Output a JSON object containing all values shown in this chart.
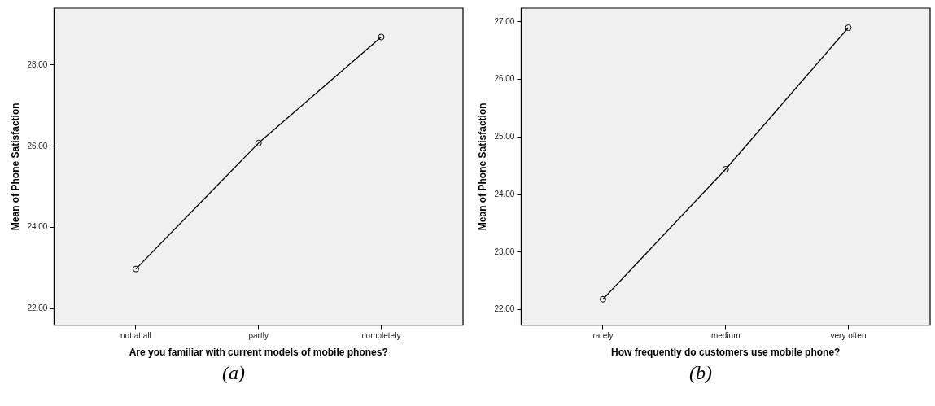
{
  "chart_data": [
    {
      "type": "line",
      "xlabel": "Are you familiar with current models of mobile phones?",
      "ylabel": "Mean of Phone Satisfaction",
      "categories": [
        "not at all",
        "partly",
        "completely"
      ],
      "values": [
        22.98,
        26.08,
        28.69
      ],
      "color": "#000000",
      "ylim": [
        21.6,
        29.4
      ],
      "yticks": [
        {
          "value": 22,
          "label": "22.00"
        },
        {
          "value": 24,
          "label": "24.00"
        },
        {
          "value": 26,
          "label": "26.00"
        },
        {
          "value": 28,
          "label": "28.00"
        }
      ],
      "grid": false,
      "legend": false,
      "marker": "circle",
      "line_style": "solid",
      "annotations": [
        "(a)"
      ]
    },
    {
      "type": "line",
      "xlabel": "How frequently do customers use mobile phone?",
      "ylabel": "Mean of Phone Satisfaction",
      "categories": [
        "rarely",
        "medium",
        "very often"
      ],
      "values": [
        22.18,
        24.44,
        26.9
      ],
      "color": "#000000",
      "ylim": [
        21.73,
        27.24
      ],
      "yticks": [
        {
          "value": 22,
          "label": "22.00"
        },
        {
          "value": 23,
          "label": "23.00"
        },
        {
          "value": 24,
          "label": "24.00"
        },
        {
          "value": 25,
          "label": "25.00"
        },
        {
          "value": 26,
          "label": "26.00"
        },
        {
          "value": 27,
          "label": "27.00"
        }
      ],
      "grid": false,
      "legend": false,
      "marker": "circle",
      "line_style": "solid",
      "annotations": [
        "(b)"
      ]
    }
  ]
}
